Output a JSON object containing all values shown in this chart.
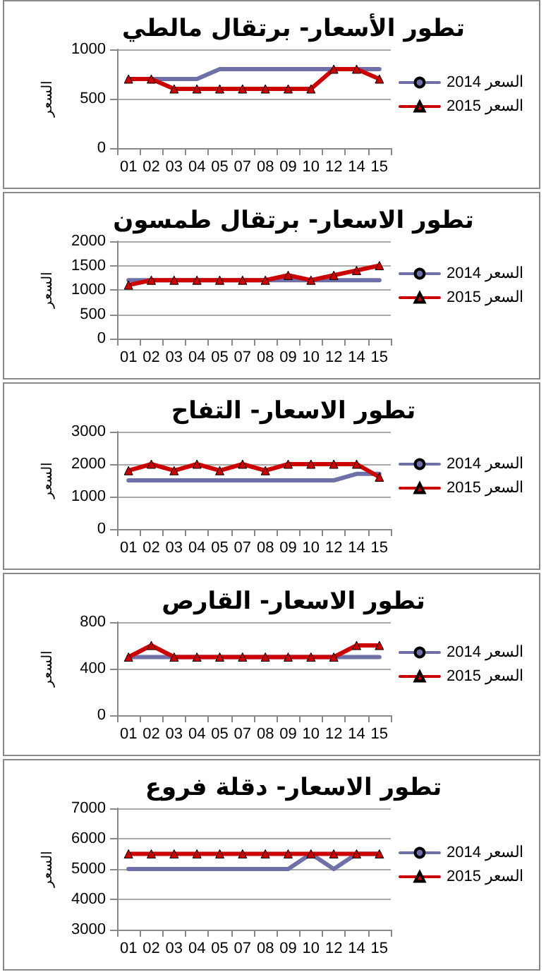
{
  "chart_data": [
    {
      "type": "line",
      "title": "تطور الأسعار- برتقال مالطي",
      "ylabel": "السعر",
      "categories": [
        "01",
        "02",
        "03",
        "04",
        "05",
        "07",
        "08",
        "09",
        "10",
        "12",
        "14",
        "15"
      ],
      "ylim": [
        0,
        1000
      ],
      "yticks": [
        0,
        500,
        1000
      ],
      "grid": "y",
      "legend": "right",
      "series": [
        {
          "name": "السعر 2014",
          "color": "#7070a8",
          "marker": "none",
          "values": [
            700,
            700,
            700,
            700,
            800,
            800,
            800,
            800,
            800,
            800,
            800,
            800
          ]
        },
        {
          "name": "السعر 2015",
          "color": "#cc0000",
          "marker": "triangle",
          "values": [
            700,
            700,
            600,
            600,
            600,
            600,
            600,
            600,
            600,
            800,
            800,
            700
          ]
        }
      ]
    },
    {
      "type": "line",
      "title": "تطور الاسعار- برتقال طمسون",
      "ylabel": "السعر",
      "categories": [
        "01",
        "02",
        "03",
        "04",
        "05",
        "07",
        "08",
        "09",
        "10",
        "12",
        "14",
        "15"
      ],
      "ylim": [
        0,
        2000
      ],
      "yticks": [
        0,
        500,
        1000,
        1500,
        2000
      ],
      "grid": "y",
      "legend": "right",
      "series": [
        {
          "name": "السعر 2014",
          "color": "#7070a8",
          "marker": "none",
          "values": [
            1200,
            1200,
            1200,
            1200,
            1200,
            1200,
            1200,
            1200,
            1200,
            1200,
            1200,
            1200
          ]
        },
        {
          "name": "السعر 2015",
          "color": "#cc0000",
          "marker": "triangle",
          "values": [
            1100,
            1200,
            1200,
            1200,
            1200,
            1200,
            1200,
            1300,
            1200,
            1300,
            1400,
            1500
          ]
        }
      ]
    },
    {
      "type": "line",
      "title": "تطور الاسعار- التفاح",
      "ylabel": "السعر",
      "categories": [
        "01",
        "02",
        "03",
        "04",
        "05",
        "07",
        "08",
        "09",
        "10",
        "12",
        "14",
        "15"
      ],
      "ylim": [
        0,
        3000
      ],
      "yticks": [
        0,
        1000,
        2000,
        3000
      ],
      "grid": "y",
      "legend": "right",
      "series": [
        {
          "name": "السعر 2014",
          "color": "#7070a8",
          "marker": "none",
          "values": [
            1500,
            1500,
            1500,
            1500,
            1500,
            1500,
            1500,
            1500,
            1500,
            1500,
            1700,
            1700
          ]
        },
        {
          "name": "السعر 2015",
          "color": "#cc0000",
          "marker": "triangle",
          "values": [
            1800,
            2000,
            1800,
            2000,
            1800,
            2000,
            1800,
            2000,
            2000,
            2000,
            2000,
            1600
          ]
        }
      ]
    },
    {
      "type": "line",
      "title": "تطور الاسعار- القارص",
      "ylabel": "السعر",
      "categories": [
        "01",
        "02",
        "03",
        "04",
        "05",
        "07",
        "08",
        "09",
        "10",
        "12",
        "14",
        "15"
      ],
      "ylim": [
        0,
        800
      ],
      "yticks": [
        0,
        400,
        800
      ],
      "grid": "y",
      "legend": "right",
      "series": [
        {
          "name": "السعر 2014",
          "color": "#7070a8",
          "marker": "none",
          "values": [
            500,
            500,
            500,
            500,
            500,
            500,
            500,
            500,
            500,
            500,
            500,
            500
          ]
        },
        {
          "name": "السعر 2015",
          "color": "#cc0000",
          "marker": "triangle",
          "values": [
            500,
            600,
            500,
            500,
            500,
            500,
            500,
            500,
            500,
            500,
            600,
            600
          ]
        }
      ]
    },
    {
      "type": "line",
      "title": "تطور الاسعار- دقلة فروع",
      "ylabel": "السعر",
      "categories": [
        "01",
        "02",
        "03",
        "04",
        "05",
        "07",
        "08",
        "09",
        "10",
        "12",
        "14",
        "15"
      ],
      "ylim": [
        3000,
        7000
      ],
      "yticks": [
        3000,
        4000,
        5000,
        6000,
        7000
      ],
      "grid": "y",
      "legend": "right",
      "series": [
        {
          "name": "السعر 2014",
          "color": "#7070a8",
          "marker": "none",
          "values": [
            5000,
            5000,
            5000,
            5000,
            5000,
            5000,
            5000,
            5000,
            5500,
            5000,
            5500,
            5500
          ]
        },
        {
          "name": "السعر 2015",
          "color": "#cc0000",
          "marker": "triangle",
          "values": [
            5500,
            5500,
            5500,
            5500,
            5500,
            5500,
            5500,
            5500,
            5500,
            5500,
            5500,
            5500
          ]
        }
      ]
    }
  ]
}
